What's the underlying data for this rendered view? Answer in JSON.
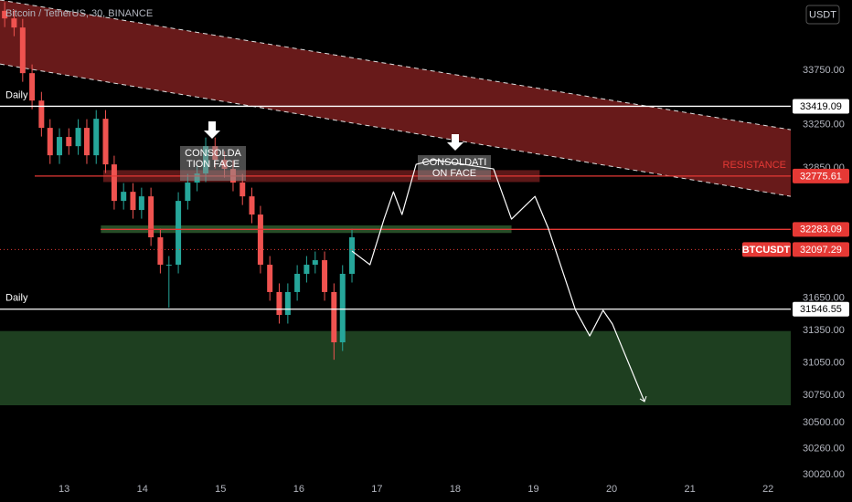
{
  "chart_data": {
    "type": "candlestick",
    "title": "Bitcoin / TetherUS, 30, BINANCE",
    "currency": "USDT",
    "xlim": [
      12.18,
      22.29
    ],
    "ylim": [
      30020,
      34400
    ],
    "xticks": [
      13,
      14,
      15,
      16,
      17,
      18,
      19,
      20,
      21,
      22
    ],
    "yticks": [
      {
        "value": 33750,
        "label": "33750.00"
      },
      {
        "value": 33250,
        "label": "33250.00"
      },
      {
        "value": 32850,
        "label": "32850.00"
      },
      {
        "value": 31650,
        "label": "31650.00"
      },
      {
        "value": 31350,
        "label": "31350.00"
      },
      {
        "value": 31050,
        "label": "31050.00"
      },
      {
        "value": 30750,
        "label": "30750.00"
      },
      {
        "value": 30500,
        "label": "30500.00"
      },
      {
        "value": 30260,
        "label": "30260.00"
      },
      {
        "value": 30020,
        "label": "30020.00"
      }
    ],
    "grid": false,
    "up_color": "#26a69a",
    "down_color": "#ef5350",
    "x": [
      12.24,
      12.36,
      12.47,
      12.59,
      12.71,
      12.82,
      12.94,
      13.06,
      13.18,
      13.29,
      13.41,
      13.53,
      13.64,
      13.76,
      13.88,
      13.99,
      14.11,
      14.23,
      14.34,
      14.46,
      14.58,
      14.7,
      14.81,
      14.93,
      15.05,
      15.16,
      15.28,
      15.4,
      15.51,
      15.63,
      15.75,
      15.86,
      15.98,
      16.1,
      16.21,
      16.33,
      16.45,
      16.56,
      16.68
    ],
    "open": [
      34300,
      34230,
      34146,
      33725,
      33472,
      33220,
      32967,
      33136,
      33051,
      33220,
      32967,
      33304,
      32883,
      32546,
      32630,
      32462,
      32588,
      32210,
      31957,
      31957,
      32546,
      32715,
      32799,
      33051,
      32925,
      32841,
      32715,
      32588,
      32420,
      31957,
      31705,
      31494,
      31705,
      31873,
      31957,
      31999,
      31705,
      31241,
      31873
    ],
    "high": [
      34380,
      34310,
      34226,
      33805,
      33552,
      33300,
      33216,
      33216,
      33300,
      33300,
      33384,
      33384,
      32963,
      32710,
      32710,
      32668,
      32668,
      32290,
      32037,
      32626,
      32795,
      32879,
      33131,
      33131,
      33005,
      32921,
      32795,
      32668,
      32500,
      32037,
      31785,
      31785,
      31953,
      32037,
      32079,
      32079,
      31785,
      31953,
      32290
    ],
    "low": [
      34150,
      34066,
      33645,
      33392,
      33140,
      32887,
      32887,
      32971,
      32971,
      32887,
      32887,
      32803,
      32466,
      32466,
      32382,
      32382,
      32130,
      31877,
      31560,
      31877,
      32466,
      32635,
      32719,
      32845,
      32761,
      32635,
      32508,
      32340,
      31877,
      31625,
      31414,
      31414,
      31625,
      31793,
      31877,
      31625,
      31080,
      31161,
      31793
    ],
    "close": [
      34230,
      34146,
      33725,
      33472,
      33220,
      32967,
      33136,
      33051,
      33220,
      32967,
      33304,
      32883,
      32546,
      32630,
      32462,
      32588,
      32210,
      31957,
      31957,
      32546,
      32715,
      32799,
      33051,
      32925,
      32841,
      32715,
      32588,
      32420,
      31957,
      31705,
      31494,
      31705,
      31873,
      31957,
      31999,
      31705,
      31241,
      31873,
      32210
    ],
    "channel": {
      "x": [
        12.18,
        22.29
      ],
      "upper": [
        34400,
        33203
      ],
      "lower": [
        33809,
        32588
      ],
      "color": "#7a1f1f"
    },
    "zones": [
      {
        "from": 32720,
        "to": 32830,
        "x": [
          13.5,
          19.08
        ],
        "color": "#6b1c1c"
      },
      {
        "from": 32250,
        "to": 32320,
        "x": [
          13.47,
          18.72
        ],
        "color": "#2e5a2e"
      },
      {
        "from": 30660,
        "to": 31345,
        "x": [
          12.18,
          22.29
        ],
        "color": "#234a26"
      }
    ],
    "levels": [
      {
        "value": 33419.09,
        "color": "#ffffff",
        "note": "Daily"
      },
      {
        "value": 32775.61,
        "color": "#e53935",
        "note": "RESISTANCE"
      },
      {
        "value": 32283.09,
        "color": "#e53935"
      },
      {
        "value": 32097.29,
        "color": "#e53935",
        "name": "BTCUSDT"
      },
      {
        "value": 31546.55,
        "color": "#ffffff",
        "note": "Daily"
      }
    ],
    "projection": {
      "x": [
        16.68,
        16.91,
        17.09,
        17.21,
        17.32,
        17.5,
        17.73,
        18.49,
        18.72,
        18.9,
        19.02,
        19.19,
        19.54,
        19.72,
        19.89,
        20.01,
        20.42
      ],
      "y": [
        32083,
        31957,
        32378,
        32630,
        32420,
        32883,
        32925,
        32841,
        32378,
        32504,
        32588,
        32294,
        31536,
        31300,
        31536,
        31410,
        30694
      ]
    },
    "annotations": [
      [
        "CONSOLDA",
        "TION FACE"
      ],
      [
        "CONSOLDATI",
        "ON FACE"
      ]
    ]
  }
}
